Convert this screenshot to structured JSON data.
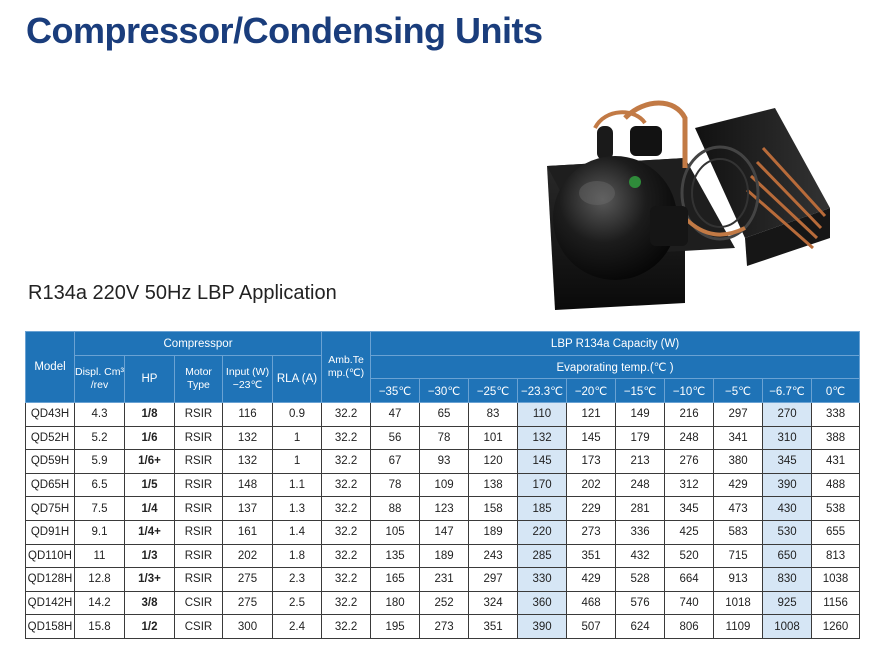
{
  "title": "Compressor/Condensing Units",
  "subtitle": "R134a 220V 50Hz LBP Application",
  "colors": {
    "title": "#1a3d7c",
    "header_bg": "#1f73b7",
    "highlight": "#d6e6f5"
  },
  "table": {
    "headers": {
      "model": "Model",
      "compressor_group": "Compresspor",
      "displ": "Displ. Cm³ /rev",
      "hp": "HP",
      "motor": "Motor Type",
      "input": "Input (W) −23℃",
      "rla": "RLA (A)",
      "amb": "Amb.Te mp.(℃)",
      "capacity_group": "LBP R134a Capacity (W)",
      "evap_group": "Evaporating temp.(℃ )",
      "temps": [
        "−35℃",
        "−30℃",
        "−25℃",
        "−23.3℃",
        "−20℃",
        "−15℃",
        "−10℃",
        "−5℃",
        "−6.7℃",
        "0℃"
      ]
    },
    "rows": [
      {
        "model": "QD43H",
        "displ": "4.3",
        "hp": "1/8",
        "motor": "RSIR",
        "input": "116",
        "rla": "0.9",
        "amb": "32.2",
        "cap": [
          "47",
          "65",
          "83",
          "110",
          "121",
          "149",
          "216",
          "297",
          "270",
          "338"
        ]
      },
      {
        "model": "QD52H",
        "displ": "5.2",
        "hp": "1/6",
        "motor": "RSIR",
        "input": "132",
        "rla": "1",
        "amb": "32.2",
        "cap": [
          "56",
          "78",
          "101",
          "132",
          "145",
          "179",
          "248",
          "341",
          "310",
          "388"
        ]
      },
      {
        "model": "QD59H",
        "displ": "5.9",
        "hp": "1/6+",
        "motor": "RSIR",
        "input": "132",
        "rla": "1",
        "amb": "32.2",
        "cap": [
          "67",
          "93",
          "120",
          "145",
          "173",
          "213",
          "276",
          "380",
          "345",
          "431"
        ]
      },
      {
        "model": "QD65H",
        "displ": "6.5",
        "hp": "1/5",
        "motor": "RSIR",
        "input": "148",
        "rla": "1.1",
        "amb": "32.2",
        "cap": [
          "78",
          "109",
          "138",
          "170",
          "202",
          "248",
          "312",
          "429",
          "390",
          "488"
        ]
      },
      {
        "model": "QD75H",
        "displ": "7.5",
        "hp": "1/4",
        "motor": "RSIR",
        "input": "137",
        "rla": "1.3",
        "amb": "32.2",
        "cap": [
          "88",
          "123",
          "158",
          "185",
          "229",
          "281",
          "345",
          "473",
          "430",
          "538"
        ]
      },
      {
        "model": "QD91H",
        "displ": "9.1",
        "hp": "1/4+",
        "motor": "RSIR",
        "input": "161",
        "rla": "1.4",
        "amb": "32.2",
        "cap": [
          "105",
          "147",
          "189",
          "220",
          "273",
          "336",
          "425",
          "583",
          "530",
          "655"
        ]
      },
      {
        "model": "QD110H",
        "displ": "11",
        "hp": "1/3",
        "motor": "RSIR",
        "input": "202",
        "rla": "1.8",
        "amb": "32.2",
        "cap": [
          "135",
          "189",
          "243",
          "285",
          "351",
          "432",
          "520",
          "715",
          "650",
          "813"
        ]
      },
      {
        "model": "QD128H",
        "displ": "12.8",
        "hp": "1/3+",
        "motor": "RSIR",
        "input": "275",
        "rla": "2.3",
        "amb": "32.2",
        "cap": [
          "165",
          "231",
          "297",
          "330",
          "429",
          "528",
          "664",
          "913",
          "830",
          "1038"
        ]
      },
      {
        "model": "QD142H",
        "displ": "14.2",
        "hp": "3/8",
        "motor": "CSIR",
        "input": "275",
        "rla": "2.5",
        "amb": "32.2",
        "cap": [
          "180",
          "252",
          "324",
          "360",
          "468",
          "576",
          "740",
          "1018",
          "925",
          "1156"
        ]
      },
      {
        "model": "QD158H",
        "displ": "15.8",
        "hp": "1/2",
        "motor": "CSIR",
        "input": "300",
        "rla": "2.4",
        "amb": "32.2",
        "cap": [
          "195",
          "273",
          "351",
          "390",
          "507",
          "624",
          "806",
          "1109",
          "1008",
          "1260"
        ]
      }
    ]
  }
}
